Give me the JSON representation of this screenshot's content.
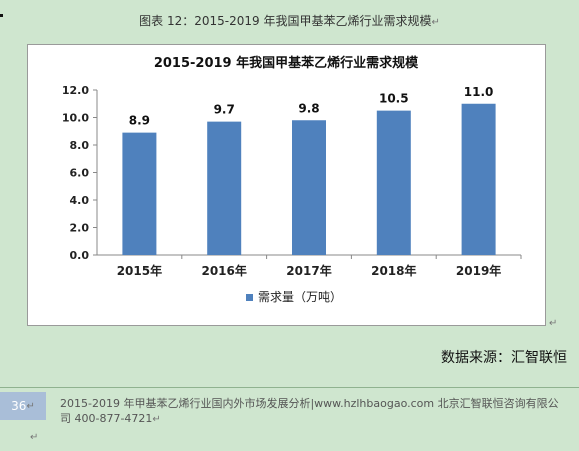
{
  "document": {
    "caption": "图表 12：2015-2019 年我国甲基苯乙烯行业需求规模",
    "source": "数据来源：汇智联恒",
    "page_number": "36",
    "footer": "2015-2019 年甲基苯乙烯行业国内外市场发展分析|www.hzlhbaogao.com 北京汇智联恒咨询有限公司 400-877-4721"
  },
  "colors": {
    "bar": "#4f81bd",
    "page_background": "#cfe6cf"
  },
  "chart_data": {
    "type": "bar",
    "title": "2015-2019 年我国甲基苯乙烯行业需求规模",
    "categories": [
      "2015年",
      "2016年",
      "2017年",
      "2018年",
      "2019年"
    ],
    "series": [
      {
        "name": "需求量（万吨）",
        "values": [
          8.9,
          9.7,
          9.8,
          10.5,
          11.0
        ]
      }
    ],
    "ylim": [
      0,
      12
    ],
    "yticks": [
      "0.0",
      "2.0",
      "4.0",
      "6.0",
      "8.0",
      "10.0",
      "12.0"
    ],
    "data_labels": [
      "8.9",
      "9.7",
      "9.8",
      "10.5",
      "11.0"
    ],
    "grid": false,
    "legend_position": "bottom"
  }
}
